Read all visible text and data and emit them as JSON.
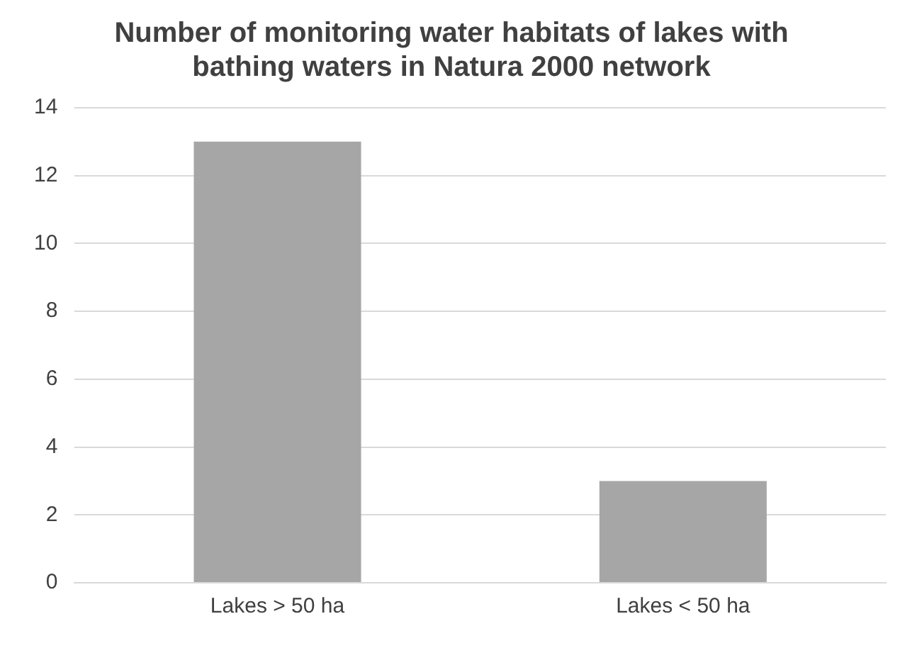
{
  "chart_data": {
    "type": "bar",
    "title": "Number of monitoring water habitats of lakes with bathing waters in Natura 2000 network",
    "categories": [
      "Lakes > 50 ha",
      "Lakes < 50 ha"
    ],
    "values": [
      13,
      3
    ],
    "color": "#a6a6a6",
    "ylim": [
      0,
      14
    ],
    "yticks": [
      0,
      2,
      4,
      6,
      8,
      10,
      12,
      14
    ],
    "grid": "y",
    "legend": false
  }
}
